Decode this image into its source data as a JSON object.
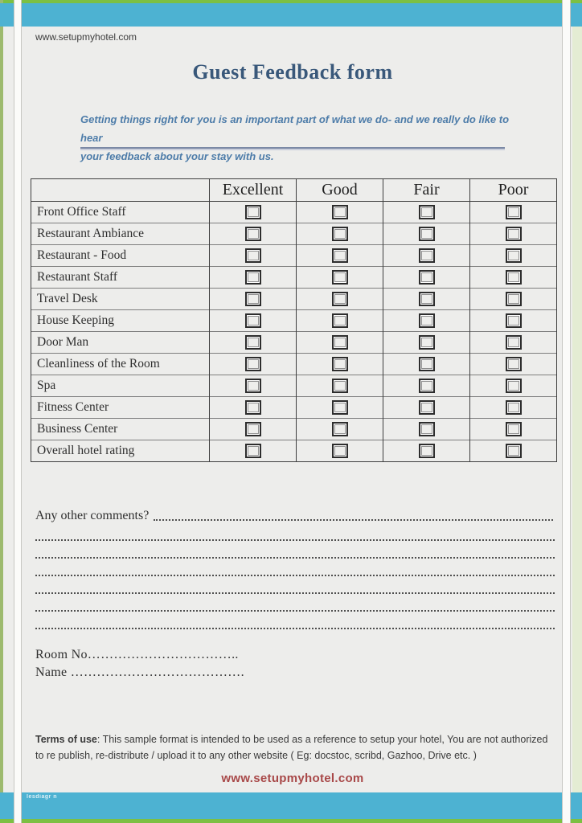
{
  "header": {
    "site_url": "www.setupmyhotel.com",
    "title": "Guest Feedback form",
    "intro_line1": "Getting things right for you is an important part of what we do- and we really do like to hear",
    "intro_line2": "your feedback about your stay with us."
  },
  "table": {
    "columns": [
      "Excellent",
      "Good",
      "Fair",
      "Poor"
    ],
    "rows": [
      "Front Office Staff",
      "Restaurant  Ambiance",
      "Restaurant  - Food",
      "Restaurant  Staff",
      "Travel Desk",
      "House Keeping",
      "Door Man",
      "Cleanliness  of the Room",
      "Spa",
      "Fitness Center",
      "Business Center",
      "Overall hotel rating"
    ]
  },
  "comments": {
    "label": "Any other comments?",
    "filler_line_count": 6
  },
  "fields": {
    "room_no": "Room No……………………………..",
    "name": "Name …………………………………."
  },
  "terms": {
    "label": "Terms of use",
    "text": ": This sample format is intended to be used as a reference to setup your hotel, You are not authorized to re publish, re-distribute / upload it to any other website ( Eg: docstoc, scribd, Gazhoo, Drive etc. )"
  },
  "footer": {
    "site_url": "www.setupmyhotel.com",
    "watermark": "lesdiagr n"
  },
  "colors": {
    "teal_band": "#4db2d2",
    "green_border": "#7cc043",
    "page_bg": "#ededeb",
    "title_text": "#39587a",
    "intro_text": "#4d7ca9",
    "footer_link": "#a84848"
  }
}
